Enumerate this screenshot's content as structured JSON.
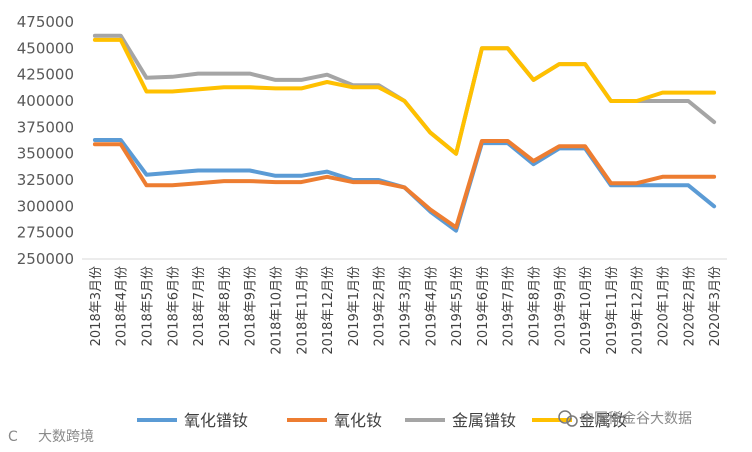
{
  "chart_data": {
    "type": "line",
    "title": "",
    "xlabel": "",
    "ylabel": "",
    "ylim": [
      250000,
      475000
    ],
    "yticks": [
      250000,
      275000,
      300000,
      325000,
      350000,
      375000,
      400000,
      425000,
      450000,
      475000
    ],
    "grid": false,
    "legend_position": "bottom",
    "categories": [
      "2018年3月份",
      "2018年4月份",
      "2018年5月份",
      "2018年6月份",
      "2018年7月份",
      "2018年8月份",
      "2018年9月份",
      "2018年10月份",
      "2018年11月份",
      "2018年12月份",
      "2019年1月份",
      "2019年2月份",
      "2019年3月份",
      "2019年4月份",
      "2019年5月份",
      "2019年6月份",
      "2019年7月份",
      "2019年8月份",
      "2019年9月份",
      "2019年10月份",
      "2019年11月份",
      "2019年12月份",
      "2020年1月份",
      "2020年2月份",
      "2020年3月份"
    ],
    "series": [
      {
        "name": "氧化镨钕",
        "color": "#5b9bd5",
        "values": [
          363000,
          363000,
          330000,
          332000,
          334000,
          334000,
          334000,
          329000,
          329000,
          333000,
          325000,
          325000,
          318000,
          295000,
          277000,
          360000,
          360000,
          340000,
          355000,
          355000,
          320000,
          320000,
          320000,
          320000,
          300000
        ]
      },
      {
        "name": "氧化钕",
        "color": "#ed7d31",
        "values": [
          359000,
          359000,
          320000,
          320000,
          322000,
          324000,
          324000,
          323000,
          323000,
          328000,
          323000,
          323000,
          318000,
          297000,
          280000,
          362000,
          362000,
          343000,
          357000,
          357000,
          322000,
          322000,
          328000,
          328000,
          328000
        ]
      },
      {
        "name": "金属镨钕",
        "color": "#a5a5a5",
        "values": [
          462000,
          462000,
          422000,
          423000,
          426000,
          426000,
          426000,
          420000,
          420000,
          425000,
          415000,
          415000,
          400000,
          370000,
          350000,
          450000,
          450000,
          420000,
          435000,
          435000,
          400000,
          400000,
          400000,
          400000,
          380000
        ]
      },
      {
        "name": "金属钕",
        "color": "#ffc000",
        "values": [
          458000,
          458000,
          409000,
          409000,
          411000,
          413000,
          413000,
          412000,
          412000,
          418000,
          413000,
          413000,
          400000,
          370000,
          350000,
          450000,
          450000,
          420000,
          435000,
          435000,
          400000,
          400000,
          408000,
          408000,
          408000
        ]
      }
    ]
  },
  "watermarks": {
    "bottom_left": "大数跨境",
    "bottom_right": "中国稀金谷大数据"
  }
}
